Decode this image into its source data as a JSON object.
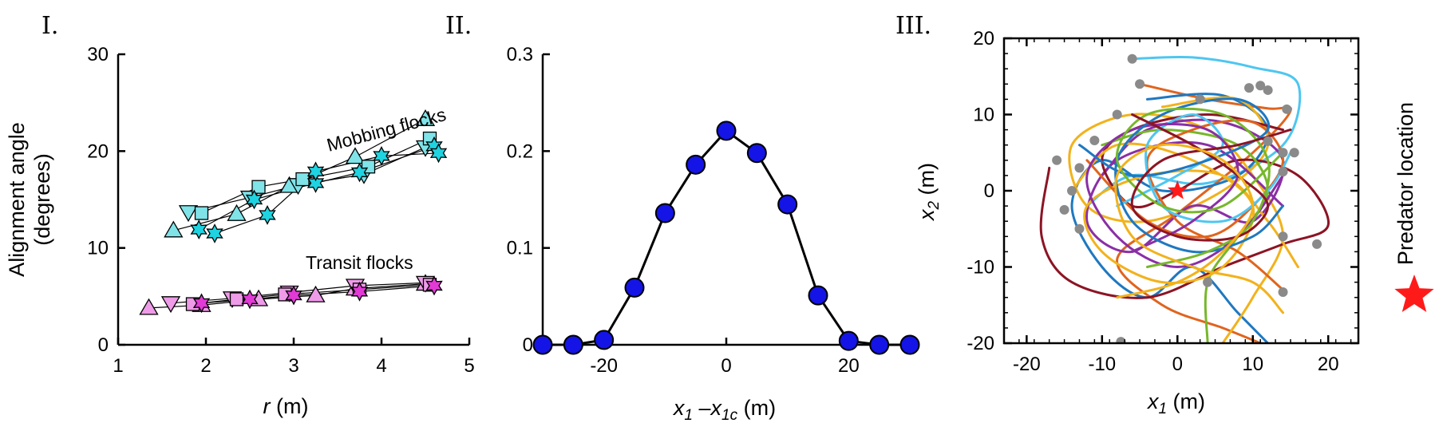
{
  "panels": [
    {
      "label": "I."
    },
    {
      "label": "II."
    },
    {
      "label": "III."
    }
  ],
  "chart_data": [
    {
      "type": "scatter",
      "panel": "I.",
      "xlabel_italic": "r",
      "xlabel_rest": " (m)",
      "ylabel_line1": "Alignment angle",
      "ylabel_line2": "(degrees)",
      "xlim": [
        1,
        5
      ],
      "ylim": [
        0,
        30
      ],
      "xticks": [
        1,
        2,
        3,
        4,
        5
      ],
      "yticks": [
        0,
        10,
        20,
        30
      ],
      "annotations": [
        "Mobbing flocks",
        "Transit flocks"
      ],
      "colors": {
        "mobbing": "#7fe3e8",
        "mobbing_star": "#1fd3e0",
        "transit": "#ee9be8",
        "transit_star": "#e23ad6"
      },
      "series": [
        {
          "group": "mobbing",
          "marker": "triangle-up",
          "x": [
            1.63,
            2.35,
            2.95,
            3.7,
            4.5
          ],
          "y": [
            11.8,
            13.5,
            16.4,
            19.4,
            23.3
          ]
        },
        {
          "group": "mobbing",
          "marker": "triangle-down",
          "x": [
            1.8,
            2.5,
            3.05,
            3.8,
            4.5
          ],
          "y": [
            13.7,
            15.2,
            16.5,
            17.6,
            20.4
          ]
        },
        {
          "group": "mobbing",
          "marker": "square",
          "x": [
            1.95,
            2.6,
            3.1,
            3.85,
            4.55
          ],
          "y": [
            13.6,
            16.3,
            17.1,
            18.4,
            21.3
          ]
        },
        {
          "group": "mobbing",
          "marker": "star",
          "x": [
            1.92,
            2.55,
            3.25,
            3.75,
            4.6
          ],
          "y": [
            11.9,
            15.0,
            16.7,
            17.8,
            20.5
          ]
        },
        {
          "group": "mobbing",
          "marker": "star",
          "x": [
            2.1,
            2.7,
            3.25,
            4.0,
            4.65
          ],
          "y": [
            11.5,
            13.4,
            17.9,
            19.5,
            19.8
          ]
        },
        {
          "group": "transit",
          "marker": "triangle-up",
          "x": [
            1.35,
            1.95,
            2.6,
            3.25,
            3.7,
            4.5
          ],
          "y": [
            3.8,
            4.1,
            4.7,
            5.1,
            5.8,
            6.3
          ]
        },
        {
          "group": "transit",
          "marker": "triangle-down",
          "x": [
            1.6,
            2.3,
            2.95,
            3.7,
            4.5
          ],
          "y": [
            4.3,
            4.8,
            5.4,
            6.1,
            6.4
          ]
        },
        {
          "group": "transit",
          "marker": "square",
          "x": [
            1.85,
            2.35,
            2.9,
            3.75,
            4.55
          ],
          "y": [
            4.2,
            4.7,
            5.2,
            5.7,
            6.2
          ]
        },
        {
          "group": "transit",
          "marker": "star",
          "x": [
            1.95,
            2.5,
            3.0,
            3.75,
            4.6
          ],
          "y": [
            4.3,
            4.7,
            5.1,
            5.5,
            6.1
          ]
        }
      ]
    },
    {
      "type": "line",
      "panel": "II.",
      "xlabel_var": "x",
      "xlabel_sub1": "1",
      "xlabel_mid": " –x",
      "xlabel_sub2": "1c",
      "xlabel_rest": " (m)",
      "xlim": [
        -30,
        30
      ],
      "ylim": [
        0,
        0.3
      ],
      "xticks": [
        -20,
        0,
        20
      ],
      "yticks": [
        0,
        0.1,
        0.2,
        0.3
      ],
      "ytick_labels": [
        "0",
        "0.1",
        "0.2",
        "0.3"
      ],
      "color": "#1414e6",
      "x": [
        -30,
        -25,
        -20,
        -15,
        -10,
        -5,
        0,
        5,
        10,
        15,
        20,
        25,
        30
      ],
      "y": [
        0.0,
        0.0,
        0.005,
        0.059,
        0.136,
        0.186,
        0.221,
        0.198,
        0.145,
        0.051,
        0.004,
        0.0,
        0.0
      ]
    },
    {
      "type": "line",
      "panel": "III.",
      "xlabel_var": "x",
      "xlabel_sub": "1",
      "xlabel_rest": " (m)",
      "ylabel_var": "x",
      "ylabel_sub": "2",
      "ylabel_rest": " (m)",
      "xlim": [
        -23,
        24
      ],
      "ylim": [
        -20,
        20
      ],
      "xticks": [
        -20,
        -10,
        0,
        10,
        20
      ],
      "yticks": [
        -20,
        -10,
        0,
        10,
        20
      ],
      "side_label": "Predator location",
      "predator": {
        "x": 0,
        "y": 0,
        "color": "#ff1a1a"
      },
      "trajectories": [
        {
          "color": "#4ec6f0",
          "points": [
            [
              -6,
              17.3
            ],
            [
              2,
              17.5
            ],
            [
              10,
              16.2
            ],
            [
              16,
              14
            ],
            [
              14,
              6
            ],
            [
              4,
              1
            ],
            [
              -6,
              2
            ],
            [
              -12,
              -2
            ]
          ]
        },
        {
          "color": "#e0641e",
          "points": [
            [
              -5,
              14
            ],
            [
              4,
              12
            ],
            [
              12,
              10.8
            ],
            [
              15,
              10.5
            ],
            [
              10,
              5
            ],
            [
              0,
              -3
            ],
            [
              -8,
              -9
            ],
            [
              -2,
              -15
            ],
            [
              6,
              -18
            ],
            [
              11,
              -20
            ]
          ]
        },
        {
          "color": "#1f78c0",
          "points": [
            [
              -4,
              12
            ],
            [
              6,
              12.5
            ],
            [
              12,
              8
            ],
            [
              8,
              2
            ],
            [
              -2,
              0
            ],
            [
              -10,
              4
            ],
            [
              -14,
              -2
            ],
            [
              -10,
              -10
            ],
            [
              -4,
              -14
            ],
            [
              2,
              -10
            ],
            [
              8,
              -16
            ],
            [
              12,
              -20
            ]
          ]
        },
        {
          "color": "#f2b21b",
          "points": [
            [
              -2,
              11
            ],
            [
              8,
              12
            ],
            [
              12,
              6
            ],
            [
              6,
              0
            ],
            [
              -4,
              -4
            ],
            [
              -12,
              -2
            ],
            [
              -14,
              6
            ],
            [
              -6,
              10
            ],
            [
              4,
              8
            ],
            [
              10,
              2
            ],
            [
              14,
              -6
            ],
            [
              10,
              -14
            ],
            [
              6,
              -20
            ]
          ]
        },
        {
          "color": "#8a2fa5",
          "points": [
            [
              -10,
              2
            ],
            [
              -4,
              8
            ],
            [
              6,
              9
            ],
            [
              14,
              4
            ],
            [
              10,
              -4
            ],
            [
              2,
              -2
            ],
            [
              -6,
              -8
            ],
            [
              -12,
              -4
            ],
            [
              -8,
              4
            ],
            [
              4,
              6
            ],
            [
              14,
              -2
            ]
          ]
        },
        {
          "color": "#8c1424",
          "points": [
            [
              -17,
              3
            ],
            [
              -18,
              -6
            ],
            [
              -14,
              -12
            ],
            [
              -4,
              -14
            ],
            [
              6,
              -10
            ],
            [
              14,
              -7
            ],
            [
              20,
              -4.5
            ],
            [
              16,
              2
            ],
            [
              8,
              4
            ],
            [
              0,
              0
            ],
            [
              -6,
              -2
            ],
            [
              -10,
              4
            ],
            [
              -6,
              8
            ],
            [
              4,
              10
            ],
            [
              14,
              8
            ]
          ]
        },
        {
          "color": "#77b72c",
          "points": [
            [
              -10,
              6
            ],
            [
              -2,
              8
            ],
            [
              8,
              6
            ],
            [
              12,
              0
            ],
            [
              8,
              -6
            ],
            [
              4,
              -12
            ],
            [
              4,
              -20
            ]
          ]
        },
        {
          "color": "#f2b21b",
          "points": [
            [
              -14,
              0
            ],
            [
              -8,
              6
            ],
            [
              2,
              4
            ],
            [
              10,
              -2
            ],
            [
              6,
              -10
            ],
            [
              -2,
              -12
            ],
            [
              -10,
              -8
            ],
            [
              -12,
              -2
            ],
            [
              -4,
              2
            ],
            [
              6,
              2
            ],
            [
              12,
              -4
            ],
            [
              16,
              -10
            ]
          ]
        },
        {
          "color": "#e0641e",
          "points": [
            [
              -12,
              4
            ],
            [
              -4,
              -4
            ],
            [
              4,
              -6
            ],
            [
              10,
              -2
            ],
            [
              14,
              4
            ],
            [
              10,
              9
            ],
            [
              2,
              8
            ],
            [
              -4,
              4
            ],
            [
              0,
              -4
            ],
            [
              8,
              -8
            ],
            [
              14,
              -13
            ]
          ]
        },
        {
          "color": "#4ec6f0",
          "points": [
            [
              -8,
              -2
            ],
            [
              0,
              2
            ],
            [
              6,
              6
            ],
            [
              2,
              10
            ],
            [
              -4,
              6
            ],
            [
              -2,
              -2
            ],
            [
              6,
              -4
            ],
            [
              12,
              0
            ],
            [
              15,
              5
            ]
          ]
        },
        {
          "color": "#8a2fa5",
          "points": [
            [
              -6,
              -8
            ],
            [
              2,
              -4
            ],
            [
              8,
              2
            ],
            [
              4,
              8
            ],
            [
              -6,
              8
            ],
            [
              -12,
              2
            ],
            [
              -8,
              -6
            ],
            [
              0,
              -10
            ],
            [
              8,
              -6
            ],
            [
              14,
              2
            ]
          ]
        },
        {
          "color": "#1f78c0",
          "points": [
            [
              -13,
              6
            ],
            [
              -6,
              2
            ],
            [
              4,
              4
            ],
            [
              12,
              8
            ],
            [
              8,
              12
            ],
            [
              -2,
              10
            ],
            [
              -8,
              4
            ],
            [
              -6,
              -4
            ],
            [
              2,
              -8
            ],
            [
              10,
              -6
            ],
            [
              14,
              -2
            ]
          ]
        },
        {
          "color": "#77b72c",
          "points": [
            [
              -4,
              -10
            ],
            [
              4,
              -8
            ],
            [
              10,
              -4
            ],
            [
              12,
              4
            ],
            [
              6,
              10
            ],
            [
              -4,
              10
            ],
            [
              -8,
              4
            ],
            [
              -2,
              -2
            ],
            [
              6,
              -2
            ],
            [
              14,
              5
            ]
          ]
        },
        {
          "color": "#8c1424",
          "points": [
            [
              -6,
              10
            ],
            [
              2,
              6
            ],
            [
              8,
              2
            ],
            [
              12,
              -2
            ],
            [
              8,
              -6
            ],
            [
              0,
              -6
            ],
            [
              -6,
              -2
            ],
            [
              -2,
              4
            ],
            [
              8,
              6
            ],
            [
              15,
              8
            ]
          ]
        },
        {
          "color": "#f2b21b",
          "points": [
            [
              -8,
              -14
            ],
            [
              0,
              -12
            ],
            [
              6,
              -8
            ],
            [
              10,
              -2
            ],
            [
              6,
              4
            ],
            [
              -2,
              6
            ],
            [
              -8,
              2
            ],
            [
              -6,
              -6
            ],
            [
              2,
              -10
            ],
            [
              10,
              -12
            ],
            [
              14,
              -16
            ]
          ]
        }
      ],
      "endpoints_color": "#8a8a8a",
      "endpoints": [
        [
          -6,
          17.3
        ],
        [
          9.5,
          13.5
        ],
        [
          11,
          13.8
        ],
        [
          12,
          13.2
        ],
        [
          -5,
          14
        ],
        [
          3,
          12
        ],
        [
          14.5,
          10.7
        ],
        [
          -8,
          10
        ],
        [
          12,
          6.5
        ],
        [
          14,
          5
        ],
        [
          15.5,
          5
        ],
        [
          -11,
          6.6
        ],
        [
          -16,
          4
        ],
        [
          14,
          2.5
        ],
        [
          -13,
          3
        ],
        [
          18.5,
          -7
        ],
        [
          -14,
          0
        ],
        [
          -15,
          -2.5
        ],
        [
          -13,
          -5
        ],
        [
          14,
          -6
        ],
        [
          4,
          -12
        ],
        [
          14,
          -13.3
        ],
        [
          -7.5,
          -19.8
        ]
      ]
    }
  ]
}
